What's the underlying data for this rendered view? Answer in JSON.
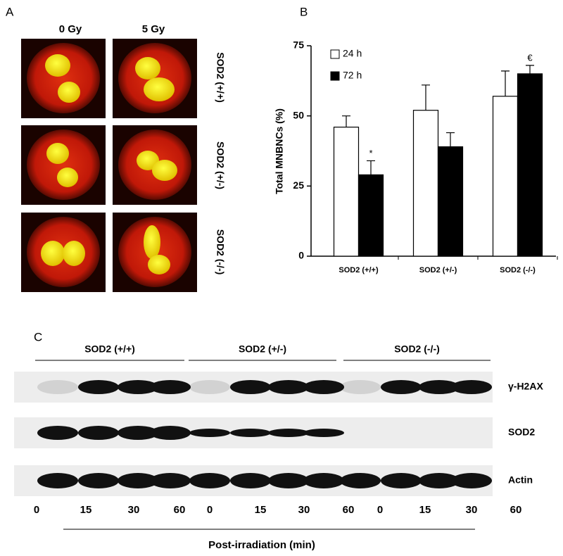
{
  "panel_a": {
    "label": "A",
    "columns": [
      "0 Gy",
      "5 Gy"
    ],
    "rows": [
      "SOD2 (+/+)",
      "SOD2 (+/-)",
      "SOD2 (-/-)"
    ]
  },
  "chart_data": {
    "type": "bar",
    "label": "B",
    "y_label": "Total MNBNCs (%)",
    "categories": [
      "SOD2 (+/+)",
      "SOD2 (+/-)",
      "SOD2 (-/-)"
    ],
    "series": [
      {
        "name": "24 h",
        "color": "#ffffff",
        "values": [
          46,
          52,
          57
        ],
        "errors": [
          4,
          9,
          9
        ]
      },
      {
        "name": "72 h",
        "color": "#000000",
        "values": [
          29,
          39,
          65
        ],
        "errors": [
          5,
          5,
          3
        ],
        "annotations": [
          "*",
          null,
          "€"
        ]
      }
    ],
    "ylim": [
      0,
      75
    ],
    "yticks": [
      0,
      25,
      50,
      75
    ],
    "legend": "top-left"
  },
  "panel_c": {
    "label": "C",
    "groups": [
      "SOD2 (+/+)",
      "SOD2 (+/-)",
      "SOD2 (-/-)"
    ],
    "lanes": [
      "0",
      "15",
      "30",
      "60",
      "0",
      "15",
      "30",
      "60",
      "0",
      "15",
      "30",
      "60"
    ],
    "proteins": [
      "γ-H2AX",
      "SOD2",
      "Actin"
    ],
    "x_label": "Post-irradiation (min)"
  }
}
